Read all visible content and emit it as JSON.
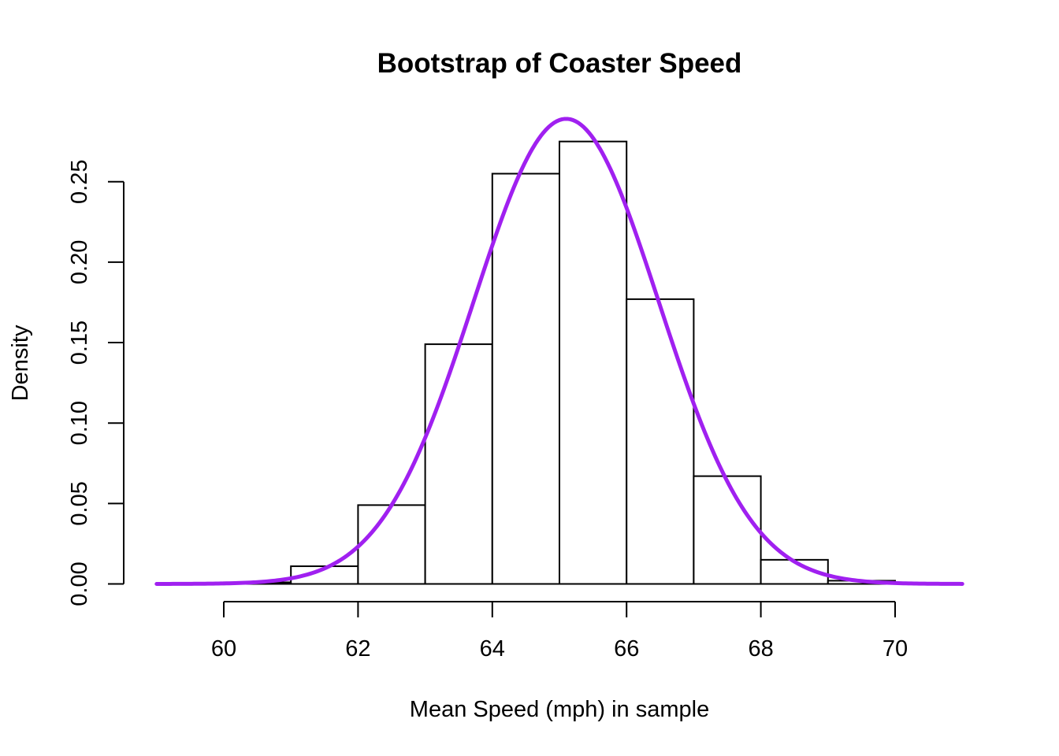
{
  "chart_data": {
    "type": "bar",
    "title": "Bootstrap of Coaster Speed",
    "xlabel": "Mean Speed (mph) in sample",
    "ylabel": "Density",
    "bins": [
      {
        "from": 60,
        "to": 61,
        "density": 0.001
      },
      {
        "from": 61,
        "to": 62,
        "density": 0.011
      },
      {
        "from": 62,
        "to": 63,
        "density": 0.049
      },
      {
        "from": 63,
        "to": 64,
        "density": 0.149
      },
      {
        "from": 64,
        "to": 65,
        "density": 0.255
      },
      {
        "from": 65,
        "to": 66,
        "density": 0.275
      },
      {
        "from": 66,
        "to": 67,
        "density": 0.177
      },
      {
        "from": 67,
        "to": 68,
        "density": 0.067
      },
      {
        "from": 68,
        "to": 69,
        "density": 0.015
      },
      {
        "from": 69,
        "to": 70,
        "density": 0.002
      }
    ],
    "curve": {
      "type": "normal-density",
      "mean": 65.1,
      "sd": 1.38,
      "xrange": [
        59,
        71
      ],
      "color": "#A020F0"
    },
    "xticks": [
      "60",
      "62",
      "64",
      "66",
      "68",
      "70"
    ],
    "yticks": [
      "0.00",
      "0.05",
      "0.10",
      "0.15",
      "0.20",
      "0.25"
    ],
    "xlim": [
      59,
      71
    ],
    "ylim": [
      0,
      0.285
    ],
    "grid": false
  }
}
